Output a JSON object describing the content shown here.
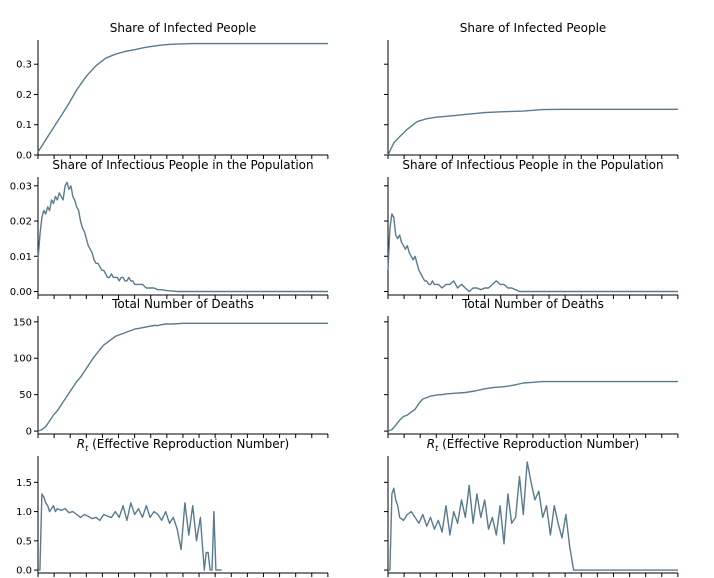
{
  "chart_data": [
    {
      "type": "line",
      "panel": "infected-left",
      "title": "Share of Infected People",
      "ylim": [
        0,
        0.38
      ],
      "yticks": [
        0.0,
        0.1,
        0.2,
        0.3
      ],
      "ytick_labels": [
        "0.0",
        "0.1",
        "0.2",
        "0.3"
      ],
      "show_ytick_labels": true,
      "xlim": [
        0,
        150
      ],
      "xtick_step": 8.33,
      "x": [
        0,
        5,
        10,
        15,
        20,
        25,
        30,
        35,
        40,
        45,
        50,
        55,
        60,
        65,
        70,
        80,
        90,
        100,
        110,
        120,
        130,
        140,
        150
      ],
      "y": [
        0.01,
        0.06,
        0.11,
        0.16,
        0.215,
        0.26,
        0.295,
        0.32,
        0.333,
        0.342,
        0.348,
        0.355,
        0.36,
        0.364,
        0.366,
        0.368,
        0.368,
        0.368,
        0.368,
        0.368,
        0.368,
        0.368,
        0.368
      ],
      "color": "#587b8d"
    },
    {
      "type": "line",
      "panel": "infected-right",
      "title": "Share of Infected People",
      "ylim": [
        0,
        0.38
      ],
      "yticks": [
        0.0,
        0.1,
        0.2,
        0.3
      ],
      "ytick_labels": [
        "0.0",
        "0.1",
        "0.2",
        "0.3"
      ],
      "show_ytick_labels": false,
      "xlim": [
        0,
        150
      ],
      "xtick_step": 8.33,
      "x": [
        0,
        3,
        6,
        10,
        15,
        20,
        25,
        30,
        35,
        40,
        50,
        60,
        70,
        80,
        90,
        100,
        110,
        120,
        130,
        140,
        150
      ],
      "y": [
        0.0,
        0.04,
        0.06,
        0.085,
        0.11,
        0.12,
        0.125,
        0.128,
        0.131,
        0.134,
        0.14,
        0.143,
        0.145,
        0.15,
        0.151,
        0.151,
        0.151,
        0.151,
        0.151,
        0.151,
        0.151
      ],
      "color": "#587b8d"
    },
    {
      "type": "line",
      "panel": "infectious-left",
      "title": "Share of Infectious People in the Population",
      "ylim": [
        -0.001,
        0.0325
      ],
      "yticks": [
        0.0,
        0.01,
        0.02,
        0.03
      ],
      "ytick_labels": [
        "0.00",
        "0.01",
        "0.02",
        "0.03"
      ],
      "show_ytick_labels": true,
      "xlim": [
        0,
        150
      ],
      "xtick_step": 8.33,
      "x": [
        0,
        1,
        2,
        3,
        4,
        5,
        6,
        7,
        8,
        9,
        10,
        11,
        12,
        13,
        14,
        15,
        16,
        17,
        18,
        19,
        20,
        21,
        22,
        23,
        24,
        25,
        26,
        27,
        28,
        29,
        30,
        31,
        32,
        33,
        34,
        35,
        36,
        37,
        38,
        39,
        40,
        41,
        42,
        43,
        44,
        45,
        46,
        47,
        48,
        49,
        50,
        52,
        54,
        56,
        58,
        60,
        62,
        64,
        66,
        68,
        70,
        72,
        75,
        80,
        90,
        100,
        110,
        120,
        130,
        140,
        150
      ],
      "y": [
        0.009,
        0.016,
        0.021,
        0.023,
        0.022,
        0.024,
        0.023,
        0.026,
        0.025,
        0.027,
        0.026,
        0.028,
        0.027,
        0.026,
        0.03,
        0.031,
        0.029,
        0.03,
        0.027,
        0.026,
        0.024,
        0.023,
        0.02,
        0.018,
        0.017,
        0.015,
        0.013,
        0.012,
        0.011,
        0.009,
        0.008,
        0.008,
        0.007,
        0.006,
        0.006,
        0.005,
        0.004,
        0.004,
        0.005,
        0.004,
        0.004,
        0.004,
        0.003,
        0.004,
        0.004,
        0.003,
        0.003,
        0.004,
        0.003,
        0.003,
        0.002,
        0.002,
        0.002,
        0.001,
        0.001,
        0.001,
        0.0005,
        0.0005,
        0.0003,
        0.0002,
        0.0001,
        0.0,
        0.0,
        0.0,
        0.0,
        0.0,
        0.0,
        0.0,
        0.0,
        0.0,
        0.0
      ],
      "color": "#587b8d"
    },
    {
      "type": "line",
      "panel": "infectious-right",
      "title": "Share of Infectious People in the Population",
      "ylim": [
        -0.001,
        0.0325
      ],
      "yticks": [
        0.0,
        0.01,
        0.02,
        0.03
      ],
      "ytick_labels": [
        "0.00",
        "0.01",
        "0.02",
        "0.03"
      ],
      "show_ytick_labels": false,
      "xlim": [
        0,
        150
      ],
      "xtick_step": 8.33,
      "x": [
        0,
        1,
        2,
        3,
        4,
        5,
        6,
        7,
        8,
        9,
        10,
        11,
        12,
        13,
        14,
        15,
        16,
        17,
        18,
        19,
        20,
        21,
        22,
        23,
        24,
        25,
        26,
        28,
        30,
        32,
        34,
        36,
        38,
        40,
        42,
        44,
        46,
        48,
        50,
        52,
        54,
        56,
        58,
        60,
        62,
        64,
        66,
        68,
        70,
        75,
        80,
        90,
        100,
        110,
        120,
        130,
        140,
        150
      ],
      "y": [
        0.006,
        0.018,
        0.022,
        0.021,
        0.016,
        0.015,
        0.016,
        0.014,
        0.013,
        0.012,
        0.013,
        0.011,
        0.01,
        0.009,
        0.01,
        0.008,
        0.006,
        0.005,
        0.004,
        0.003,
        0.003,
        0.002,
        0.002,
        0.003,
        0.002,
        0.002,
        0.002,
        0.001,
        0.002,
        0.002,
        0.003,
        0.001,
        0.002,
        0.001,
        0.0,
        0.001,
        0.001,
        0.0005,
        0.001,
        0.001,
        0.002,
        0.003,
        0.002,
        0.002,
        0.001,
        0.001,
        0.0005,
        0.0,
        0.0,
        0.0,
        0.0,
        0.0,
        0.0,
        0.0,
        0.0,
        0.0,
        0.0,
        0.0
      ],
      "color": "#587b8d"
    },
    {
      "type": "line",
      "panel": "deaths-left",
      "title": "Total Number of Deaths",
      "ylim": [
        -4,
        158
      ],
      "yticks": [
        0,
        50,
        100,
        150
      ],
      "ytick_labels": [
        "0",
        "50",
        "100",
        "150"
      ],
      "show_ytick_labels": true,
      "xlim": [
        0,
        150
      ],
      "xtick_step": 8.33,
      "x": [
        0,
        2,
        4,
        6,
        8,
        10,
        12,
        14,
        16,
        18,
        20,
        22,
        24,
        26,
        28,
        30,
        32,
        34,
        36,
        38,
        40,
        42,
        44,
        46,
        48,
        50,
        52,
        54,
        56,
        58,
        60,
        62,
        64,
        66,
        70,
        75,
        80,
        90,
        100,
        110,
        120,
        130,
        140,
        150
      ],
      "y": [
        0,
        2,
        6,
        14,
        22,
        28,
        36,
        44,
        52,
        60,
        68,
        74,
        82,
        90,
        98,
        105,
        112,
        118,
        122,
        126,
        130,
        132,
        134,
        136,
        138,
        140,
        141,
        142,
        143,
        144,
        145,
        145,
        146,
        147,
        147,
        148,
        148,
        148,
        148,
        148,
        148,
        148,
        148,
        148
      ],
      "color": "#587b8d"
    },
    {
      "type": "line",
      "panel": "deaths-right",
      "title": "Total Number of Deaths",
      "ylim": [
        -4,
        158
      ],
      "yticks": [
        0,
        50,
        100,
        150
      ],
      "ytick_labels": [
        "0",
        "50",
        "100",
        "150"
      ],
      "show_ytick_labels": false,
      "xlim": [
        0,
        150
      ],
      "xtick_step": 8.33,
      "x": [
        0,
        2,
        4,
        6,
        8,
        10,
        12,
        14,
        16,
        18,
        20,
        22,
        24,
        26,
        28,
        30,
        35,
        40,
        45,
        50,
        55,
        60,
        65,
        70,
        75,
        80,
        90,
        100,
        110,
        120,
        130,
        140,
        150
      ],
      "y": [
        0,
        2,
        8,
        15,
        20,
        22,
        26,
        30,
        38,
        44,
        46,
        48,
        49,
        50,
        50,
        51,
        52,
        53,
        55,
        58,
        60,
        61,
        63,
        66,
        67,
        68,
        68,
        68,
        68,
        68,
        68,
        68,
        68
      ],
      "color": "#587b8d"
    },
    {
      "type": "line",
      "panel": "rt-left",
      "title": "R_t (Effective Reproduction Number)",
      "title_parts": [
        "R",
        "t",
        " (Effective Reproduction Number)"
      ],
      "ylim": [
        -0.05,
        1.95
      ],
      "yticks": [
        0.0,
        0.5,
        1.0,
        1.5
      ],
      "ytick_labels": [
        "0.0",
        "0.5",
        "1.0",
        "1.5"
      ],
      "show_ytick_labels": true,
      "xlim": [
        0,
        150
      ],
      "xtick_step": 8.33,
      "x": [
        0,
        1,
        2,
        3,
        4,
        5,
        6,
        7,
        8,
        9,
        10,
        12,
        14,
        16,
        18,
        20,
        22,
        24,
        26,
        28,
        30,
        32,
        34,
        36,
        38,
        40,
        42,
        44,
        46,
        48,
        50,
        52,
        54,
        56,
        58,
        60,
        62,
        64,
        66,
        68,
        70,
        72,
        74,
        76,
        78,
        80,
        82,
        84,
        85,
        86,
        87,
        88,
        89,
        90,
        91,
        92,
        93,
        94,
        95
      ],
      "y": [
        0.0,
        0.0,
        1.3,
        1.25,
        1.15,
        1.1,
        1.0,
        1.05,
        1.1,
        1.0,
        1.05,
        1.02,
        1.05,
        0.98,
        1.0,
        0.95,
        0.9,
        0.95,
        0.92,
        0.88,
        0.9,
        0.85,
        0.95,
        0.92,
        0.9,
        1.0,
        0.9,
        1.1,
        0.85,
        1.15,
        0.95,
        1.05,
        0.9,
        1.1,
        0.9,
        1.0,
        0.95,
        0.85,
        1.0,
        0.8,
        0.9,
        0.7,
        0.35,
        1.15,
        0.6,
        1.1,
        0.5,
        0.9,
        0.45,
        0.0,
        0.3,
        0.3,
        0.0,
        0.0,
        1.0,
        0.0,
        0.0,
        0.0,
        0.0
      ],
      "color": "#587b8d"
    },
    {
      "type": "line",
      "panel": "rt-right",
      "title": "R_t (Effective Reproduction Number)",
      "title_parts": [
        "R",
        "t",
        " (Effective Reproduction Number)"
      ],
      "ylim": [
        -0.05,
        1.95
      ],
      "yticks": [
        0.0,
        0.5,
        1.0,
        1.5
      ],
      "ytick_labels": [
        "0.0",
        "0.5",
        "1.0",
        "1.5"
      ],
      "show_ytick_labels": false,
      "xlim": [
        0,
        150
      ],
      "xtick_step": 8.33,
      "x": [
        0,
        1,
        2,
        3,
        4,
        5,
        6,
        8,
        10,
        12,
        14,
        16,
        18,
        20,
        22,
        24,
        26,
        28,
        30,
        32,
        34,
        36,
        38,
        40,
        42,
        44,
        46,
        48,
        50,
        52,
        54,
        56,
        58,
        60,
        62,
        64,
        66,
        68,
        70,
        72,
        74,
        76,
        78,
        80,
        82,
        84,
        86,
        88,
        90,
        92,
        94,
        96,
        98,
        100,
        110,
        120,
        130,
        140,
        150
      ],
      "y": [
        0.0,
        0.0,
        1.3,
        1.4,
        1.2,
        1.1,
        0.9,
        0.85,
        0.95,
        1.0,
        0.9,
        0.8,
        0.95,
        0.75,
        0.9,
        0.7,
        0.85,
        0.65,
        1.1,
        0.6,
        1.0,
        0.8,
        1.2,
        0.9,
        1.45,
        0.8,
        1.3,
        0.9,
        1.2,
        0.7,
        0.9,
        0.6,
        1.1,
        0.45,
        1.3,
        0.8,
        0.9,
        1.6,
        0.95,
        1.85,
        1.5,
        1.2,
        1.35,
        0.9,
        1.1,
        0.6,
        1.1,
        0.8,
        0.55,
        0.95,
        0.4,
        0.0,
        0.0,
        0.0,
        0.0,
        0.0,
        0.0,
        0.0,
        0.0
      ],
      "color": "#587b8d"
    }
  ]
}
